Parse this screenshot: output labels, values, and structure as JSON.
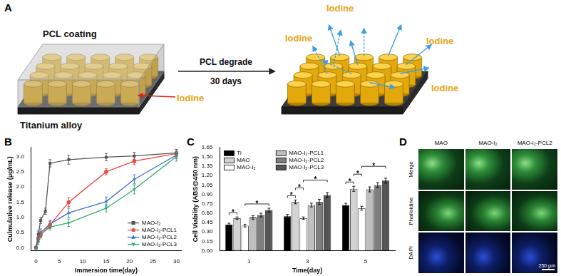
{
  "panel_labels": [
    "A",
    "B",
    "C",
    "D"
  ],
  "diagram": {
    "coating_label": "PCL coating",
    "base_label": "Titanium alloy",
    "load_label": "Iodine",
    "arrow_top": "PCL degrade",
    "arrow_bottom": "30 days",
    "released_labels": [
      "Iodine",
      "Iodine",
      "Iodine",
      "Iodine"
    ]
  },
  "chart_data": [
    {
      "type": "line",
      "x_label": "Immersion time(day)",
      "y_label": "Culmulative release (μg/mL)",
      "xlim": [
        -1,
        31
      ],
      "xticks": [
        0,
        5,
        10,
        15,
        20,
        25,
        30
      ],
      "ylim": [
        -0.1,
        3.3
      ],
      "yticks": [
        {
          "value": 0,
          "label": "0.0"
        },
        {
          "value": 0.5,
          "label": "0.5"
        },
        {
          "value": 1,
          "label": "1.0"
        },
        {
          "value": 1.5,
          "label": "1.5"
        },
        {
          "value": 2,
          "label": "2.0"
        },
        {
          "value": 2.5,
          "label": "2.5"
        },
        {
          "value": 3,
          "label": "3.0"
        }
      ],
      "grid": false,
      "legend": "lower right",
      "series": [
        {
          "name": "MAO-I₂",
          "color": "#555555",
          "marker": "square",
          "x": [
            0,
            0.5,
            1,
            2,
            3,
            7,
            15,
            21,
            30
          ],
          "values": [
            0,
            0.45,
            0.9,
            1.2,
            2.78,
            2.9,
            2.98,
            3.02,
            3.12
          ],
          "errors": [
            0.05,
            0.1,
            0.1,
            0.1,
            0.12,
            0.15,
            0.12,
            0.12,
            0.12
          ]
        },
        {
          "name": "MAO-I₂-PCL1",
          "color": "#f0443c",
          "marker": "circle",
          "x": [
            0,
            0.5,
            1,
            3,
            7,
            15,
            21,
            30
          ],
          "values": [
            0,
            0.3,
            0.42,
            0.75,
            1.5,
            2.5,
            2.85,
            3.1
          ],
          "errors": [
            0.03,
            0.1,
            0.1,
            0.12,
            0.15,
            0.1,
            0.12,
            0.1
          ]
        },
        {
          "name": "MAO-I₂-PCL2",
          "color": "#3a6fd0",
          "marker": "triangle",
          "x": [
            0,
            0.5,
            1,
            3,
            7,
            15,
            21,
            30
          ],
          "values": [
            0,
            0.28,
            0.5,
            0.78,
            1.15,
            1.52,
            2.25,
            3.05
          ],
          "errors": [
            0.03,
            0.1,
            0.12,
            0.12,
            0.15,
            0.15,
            0.15,
            0.12
          ]
        },
        {
          "name": "MAO-I₂-PCL3",
          "color": "#2eae6b",
          "marker": "triangle-down",
          "x": [
            0,
            0.5,
            1,
            3,
            7,
            15,
            21,
            30
          ],
          "values": [
            0,
            0.2,
            0.45,
            0.68,
            0.82,
            1.3,
            1.92,
            3.0
          ],
          "errors": [
            0.03,
            0.1,
            0.1,
            0.1,
            0.12,
            0.12,
            0.15,
            0.15
          ]
        }
      ]
    },
    {
      "type": "bar",
      "x_label": "Time(day)",
      "y_label": "Cell Viability (ABS@450 nm)",
      "categories": [
        "1",
        "3",
        "5"
      ],
      "ylim": [
        0,
        1.65
      ],
      "yticks": [
        {
          "value": 0,
          "label": "0.00"
        },
        {
          "value": 0.15,
          "label": "0.15"
        },
        {
          "value": 0.3,
          "label": "0.30"
        },
        {
          "value": 0.45,
          "label": "0.45"
        },
        {
          "value": 0.6,
          "label": "0.60"
        },
        {
          "value": 0.75,
          "label": "0.75"
        },
        {
          "value": 0.9,
          "label": "0.90"
        },
        {
          "value": 1.05,
          "label": "1.05"
        },
        {
          "value": 1.2,
          "label": "1.20"
        },
        {
          "value": 1.35,
          "label": "1.35"
        },
        {
          "value": 1.5,
          "label": "1.50"
        },
        {
          "value": 1.65,
          "label": "1.65"
        }
      ],
      "grid": false,
      "legend": "upper left",
      "series": [
        {
          "name": "Ti",
          "color": "#000000",
          "values": [
            0.42,
            0.55,
            0.73
          ],
          "errors": [
            0.02,
            0.03,
            0.03
          ]
        },
        {
          "name": "MAO",
          "color": "#d3d3d3",
          "values": [
            0.52,
            0.78,
            0.99
          ],
          "errors": [
            0.02,
            0.03,
            0.04
          ]
        },
        {
          "name": "MAO-I₂",
          "color": "#ffffff",
          "values": [
            0.4,
            0.52,
            0.68
          ],
          "errors": [
            0.02,
            0.02,
            0.03
          ]
        },
        {
          "name": "MAO-I₂-PCL1",
          "color": "#bfbfbf",
          "values": [
            0.53,
            0.73,
            0.98
          ],
          "errors": [
            0.03,
            0.03,
            0.04
          ]
        },
        {
          "name": "MAO-I₂-PCL2",
          "color": "#7f7f7f",
          "values": [
            0.57,
            0.78,
            1.05
          ],
          "errors": [
            0.03,
            0.04,
            0.04
          ]
        },
        {
          "name": "MAO-I₂-PCL3",
          "color": "#555555",
          "values": [
            0.65,
            0.89,
            1.12
          ],
          "errors": [
            0.03,
            0.04,
            0.04
          ]
        }
      ],
      "annotations": [
        {
          "text": "*",
          "category": "1",
          "from": "Ti",
          "to": "MAO"
        },
        {
          "text": "*",
          "category": "1",
          "from": "MAO-I₂",
          "to": "MAO-I₂-PCL3"
        },
        {
          "text": "*",
          "category": "3",
          "from": "Ti",
          "to": "MAO"
        },
        {
          "text": "*",
          "category": "3",
          "from": "MAO",
          "to": "MAO-I₂"
        },
        {
          "text": "*",
          "category": "3",
          "from": "MAO-I₂",
          "to": "MAO-I₂-PCL3"
        },
        {
          "text": "*",
          "category": "5",
          "from": "Ti",
          "to": "MAO"
        },
        {
          "text": "*",
          "category": "5",
          "from": "MAO",
          "to": "MAO-I₂"
        },
        {
          "text": "*",
          "category": "5",
          "from": "MAO-I₂",
          "to": "MAO-I₂-PCL3"
        }
      ]
    }
  ],
  "images": {
    "columns": [
      "MAO",
      "MAO-I₂",
      "MAO-I₂-PCL2"
    ],
    "rows": [
      "Merge",
      "Phalloidine",
      "DAPI"
    ],
    "scale_bar": "250 μm"
  }
}
